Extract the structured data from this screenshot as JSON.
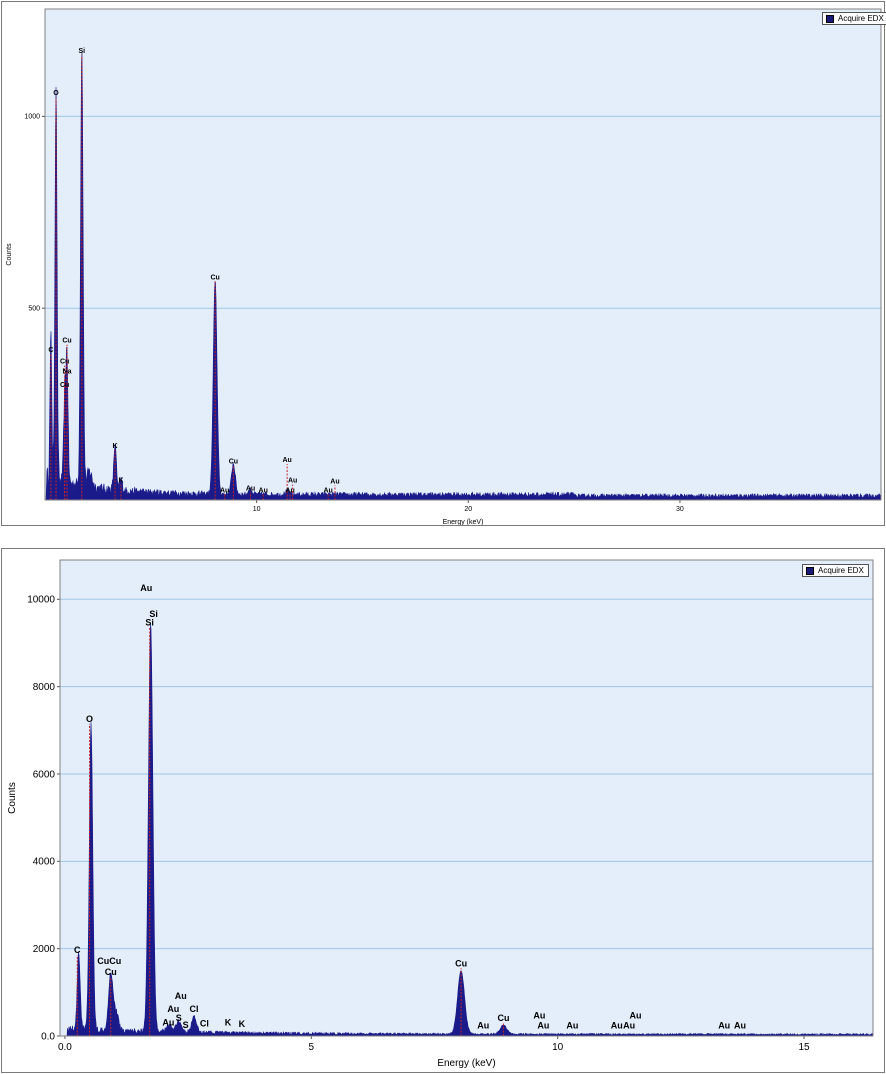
{
  "colors": {
    "plot_bg": "#e3eefa",
    "spectrum_fill": "#1a1a8a",
    "marker": "#cc2222",
    "grid": "#9ec7e6"
  },
  "chart_data": [
    {
      "type": "area",
      "legend": "Acquire EDX",
      "legend_position": "top-right",
      "xlabel": "Energy (keV)",
      "ylabel": "Counts",
      "xlim": [
        0,
        39.5
      ],
      "ylim": [
        0,
        1280
      ],
      "grid": true,
      "x_ticks": [
        10,
        20,
        30
      ],
      "y_ticks": [
        500,
        1000
      ],
      "x_tick_labels": [
        "10",
        "20",
        "30"
      ],
      "y_tick_labels": [
        "500",
        "1000"
      ],
      "background": 14,
      "peaks": [
        {
          "x": 0.28,
          "y": 370,
          "w": 0.045
        },
        {
          "x": 0.52,
          "y": 1040,
          "w": 0.05
        },
        {
          "x": 0.93,
          "y": 220,
          "w": 0.05
        },
        {
          "x": 1.04,
          "y": 330,
          "w": 0.05
        },
        {
          "x": 1.74,
          "y": 1150,
          "w": 0.06
        },
        {
          "x": 2.1,
          "y": 40,
          "w": 0.12
        },
        {
          "x": 3.31,
          "y": 120,
          "w": 0.06
        },
        {
          "x": 3.59,
          "y": 30,
          "w": 0.06
        },
        {
          "x": 8.04,
          "y": 560,
          "w": 0.09
        },
        {
          "x": 8.9,
          "y": 80,
          "w": 0.09
        },
        {
          "x": 9.71,
          "y": 12,
          "w": 0.09
        },
        {
          "x": 11.44,
          "y": 8,
          "w": 0.09
        }
      ],
      "labels": [
        {
          "text": "C",
          "x": 0.28,
          "y": 380,
          "line": true
        },
        {
          "text": "O",
          "x": 0.52,
          "y": 1050,
          "line": true
        },
        {
          "text": "Cu",
          "x": 0.93,
          "y": 290,
          "line": true
        },
        {
          "text": "Cu",
          "x": 0.93,
          "y": 350,
          "line": true
        },
        {
          "text": "Na",
          "x": 1.04,
          "y": 325,
          "line": true
        },
        {
          "text": "Cu",
          "x": 1.04,
          "y": 405,
          "line": true
        },
        {
          "text": "Si",
          "x": 1.74,
          "y": 1160,
          "line": true
        },
        {
          "text": "K",
          "x": 3.31,
          "y": 130,
          "line": true
        },
        {
          "text": "K",
          "x": 3.59,
          "y": 40,
          "line": true
        },
        {
          "text": "Cu",
          "x": 8.04,
          "y": 570,
          "line": true
        },
        {
          "text": "Au",
          "x": 8.49,
          "y": 14,
          "line": true
        },
        {
          "text": "Cu",
          "x": 8.9,
          "y": 90,
          "line": true
        },
        {
          "text": "Au",
          "x": 9.71,
          "y": 20,
          "line": true
        },
        {
          "text": "Au",
          "x": 10.31,
          "y": 14,
          "line": true
        },
        {
          "text": "Au",
          "x": 11.44,
          "y": 94,
          "line": true
        },
        {
          "text": "Au",
          "x": 11.58,
          "y": 14,
          "line": true
        },
        {
          "text": "Au",
          "x": 11.7,
          "y": 40,
          "line": true
        },
        {
          "text": "Au",
          "x": 13.38,
          "y": 14,
          "line": true
        },
        {
          "text": "Au",
          "x": 13.7,
          "y": 38,
          "line": true
        }
      ]
    },
    {
      "type": "area",
      "legend": "Acquire EDX",
      "legend_position": "top-right",
      "xlabel": "Energy (keV)",
      "ylabel": "Counts",
      "xlim": [
        -0.1,
        16.4
      ],
      "ylim": [
        0,
        10900
      ],
      "grid": true,
      "x_ticks": [
        0,
        5,
        10,
        15
      ],
      "y_ticks": [
        0,
        2000,
        4000,
        6000,
        8000,
        10000
      ],
      "x_tick_labels": [
        "0.0",
        "5",
        "10",
        "15"
      ],
      "y_tick_labels": [
        "0.0",
        "2000",
        "4000",
        "6000",
        "8000",
        "10000"
      ],
      "background": 40,
      "peaks": [
        {
          "x": 0.28,
          "y": 1750,
          "w": 0.03
        },
        {
          "x": 0.53,
          "y": 7000,
          "w": 0.035
        },
        {
          "x": 0.93,
          "y": 1300,
          "w": 0.045
        },
        {
          "x": 1.04,
          "y": 400,
          "w": 0.05
        },
        {
          "x": 1.74,
          "y": 9300,
          "w": 0.045
        },
        {
          "x": 2.12,
          "y": 150,
          "w": 0.06
        },
        {
          "x": 2.31,
          "y": 250,
          "w": 0.05
        },
        {
          "x": 2.62,
          "y": 350,
          "w": 0.05
        },
        {
          "x": 8.04,
          "y": 1450,
          "w": 0.07
        },
        {
          "x": 8.9,
          "y": 200,
          "w": 0.07
        }
      ],
      "labels": [
        {
          "text": "C",
          "x": 0.25,
          "y": 1850,
          "line": true
        },
        {
          "text": "O",
          "x": 0.5,
          "y": 7150,
          "line": true
        },
        {
          "text": "CuCu",
          "x": 0.9,
          "y": 1600,
          "line": false
        },
        {
          "text": "Cu",
          "x": 0.93,
          "y": 1350,
          "line": true
        },
        {
          "text": "Au",
          "x": 1.65,
          "y": 10150,
          "line": false
        },
        {
          "text": "Si",
          "x": 1.8,
          "y": 9550,
          "line": false
        },
        {
          "text": "Si",
          "x": 1.72,
          "y": 9350,
          "line": true
        },
        {
          "text": "Au",
          "x": 2.35,
          "y": 800,
          "line": false
        },
        {
          "text": "Au",
          "x": 2.2,
          "y": 500,
          "line": false
        },
        {
          "text": "Au",
          "x": 2.1,
          "y": 200,
          "line": false
        },
        {
          "text": "S",
          "x": 2.31,
          "y": 300,
          "line": false
        },
        {
          "text": "S",
          "x": 2.45,
          "y": 140,
          "line": false
        },
        {
          "text": "Cl",
          "x": 2.62,
          "y": 500,
          "line": false
        },
        {
          "text": "Cl",
          "x": 2.83,
          "y": 170,
          "line": false
        },
        {
          "text": "K",
          "x": 3.31,
          "y": 200,
          "line": false
        },
        {
          "text": "K",
          "x": 3.59,
          "y": 160,
          "line": false
        },
        {
          "text": "Cu",
          "x": 8.04,
          "y": 1550,
          "line": true
        },
        {
          "text": "Au",
          "x": 8.49,
          "y": 130,
          "line": false
        },
        {
          "text": "Cu",
          "x": 8.9,
          "y": 300,
          "line": true
        },
        {
          "text": "Au",
          "x": 9.63,
          "y": 350,
          "line": false
        },
        {
          "text": "Au",
          "x": 9.71,
          "y": 130,
          "line": false
        },
        {
          "text": "Au",
          "x": 10.3,
          "y": 130,
          "line": false
        },
        {
          "text": "Au",
          "x": 11.2,
          "y": 130,
          "line": false
        },
        {
          "text": "Au",
          "x": 11.45,
          "y": 130,
          "line": false
        },
        {
          "text": "Au",
          "x": 11.58,
          "y": 350,
          "line": false
        },
        {
          "text": "Au",
          "x": 13.38,
          "y": 130,
          "line": false
        },
        {
          "text": "Au",
          "x": 13.7,
          "y": 130,
          "line": false
        }
      ]
    }
  ]
}
